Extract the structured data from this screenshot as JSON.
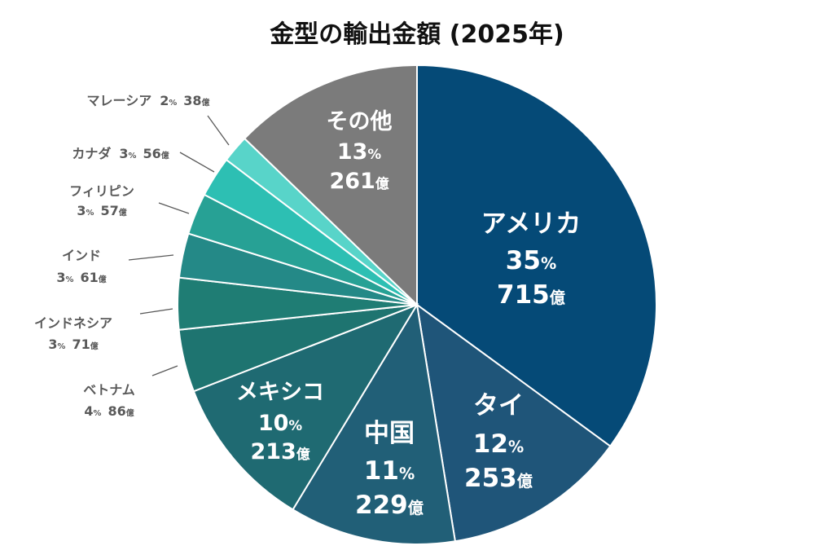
{
  "chart_data": {
    "type": "pie",
    "title": "金型の輸出金額 (2025年)",
    "start": "top",
    "direction": "clockwise",
    "units": {
      "percent": "%",
      "value": "億"
    },
    "slices": [
      {
        "label": "アメリカ",
        "percent": 35,
        "value": 715,
        "color": "#054a77"
      },
      {
        "label": "タイ",
        "percent": 12,
        "value": 253,
        "color": "#1f5579"
      },
      {
        "label": "中国",
        "percent": 11,
        "value": 229,
        "color": "#215f77"
      },
      {
        "label": "メキシコ",
        "percent": 10,
        "value": 213,
        "color": "#1f6a72"
      },
      {
        "label": "ベトナム",
        "percent": 4,
        "value": 86,
        "color": "#1e7470"
      },
      {
        "label": "インドネシア",
        "percent": 3,
        "value": 71,
        "color": "#1f7d74"
      },
      {
        "label": "インド",
        "percent": 3,
        "value": 61,
        "color": "#248987"
      },
      {
        "label": "フィリピン",
        "percent": 3,
        "value": 57,
        "color": "#27a195"
      },
      {
        "label": "カナダ",
        "percent": 3,
        "value": 56,
        "color": "#2dbfb3"
      },
      {
        "label": "マレーシア",
        "percent": 2,
        "value": 38,
        "color": "#58d4c9"
      },
      {
        "label": "その他",
        "percent": 13,
        "value": 261,
        "color": "#7b7b7b"
      }
    ]
  }
}
